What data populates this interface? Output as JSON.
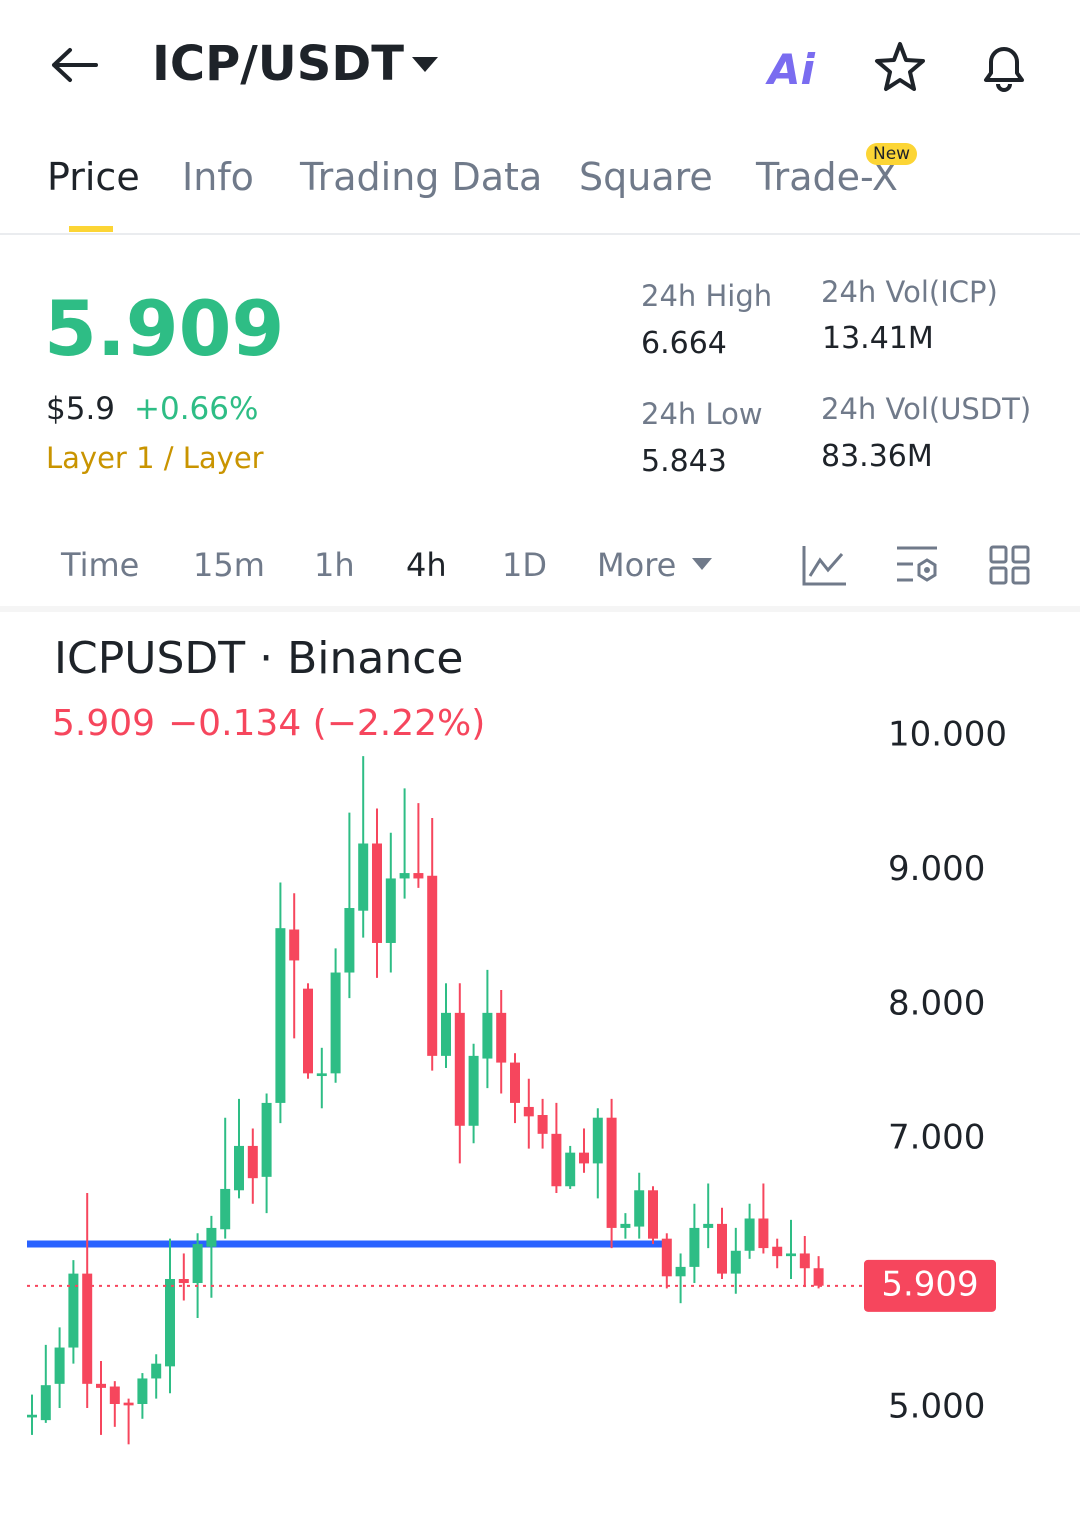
{
  "header": {
    "title": "ICP/USDT",
    "ai": "Ai"
  },
  "tabs": [
    "Price",
    "Info",
    "Trading Data",
    "Square",
    "Trade-X"
  ],
  "new_badge": "New",
  "price": {
    "last": "5.909",
    "usd": "$5.9",
    "change": "+0.66%",
    "tag": "Layer 1 / Layer"
  },
  "stats": [
    {
      "label": "24h High",
      "value": "6.664"
    },
    {
      "label": "24h Vol(ICP)",
      "value": "13.41M"
    },
    {
      "label": "24h Low",
      "value": "5.843"
    },
    {
      "label": "24h Vol(USDT)",
      "value": "83.36M"
    }
  ],
  "intervals": [
    "Time",
    "15m",
    "1h",
    "4h",
    "1D",
    "More"
  ],
  "chart": {
    "type": "candlestick",
    "title": "ICPUSDT · Binance",
    "last": "5.909",
    "change": "−0.134 (−2.22%)",
    "up_color": "#2ebd85",
    "down_color": "#f6465d",
    "ylim": [
      4.1,
      10.9
    ],
    "yticks": [
      {
        "value": 10,
        "label": "10.000"
      },
      {
        "value": 9,
        "label": "9.000"
      },
      {
        "value": 8,
        "label": "8.000"
      },
      {
        "value": 7,
        "label": "7.000"
      },
      {
        "value": 5,
        "label": "5.000"
      }
    ],
    "last_price": {
      "value": 5.909,
      "label": "5.909"
    },
    "horizontal_line": {
      "value": 6.22,
      "color": "#2962ff"
    },
    "open": [
      4.93,
      4.91,
      5.18,
      5.45,
      6.0,
      5.18,
      5.16,
      5.04,
      5.03,
      5.22,
      5.31,
      5.96,
      5.93,
      6.2,
      6.33,
      6.62,
      6.95,
      6.72,
      7.27,
      8.56,
      8.12,
      7.47,
      7.49,
      8.24,
      8.7,
      9.2,
      8.46,
      8.94,
      8.98,
      8.96,
      7.62,
      7.94,
      7.1,
      7.6,
      7.94,
      7.57,
      7.24,
      7.18,
      7.04,
      6.65,
      6.9,
      6.82,
      7.16,
      6.34,
      6.35,
      6.62,
      6.26,
      5.98,
      6.05,
      6.34,
      6.37,
      6.0,
      6.17,
      6.41,
      6.2,
      6.13,
      6.15,
      6.04
    ],
    "high": [
      5.1,
      5.47,
      5.6,
      6.1,
      6.6,
      5.35,
      5.2,
      5.07,
      5.26,
      5.4,
      6.26,
      6.15,
      6.3,
      6.43,
      7.16,
      7.3,
      7.08,
      7.34,
      8.91,
      8.83,
      8.16,
      7.68,
      8.42,
      9.43,
      9.85,
      9.46,
      9.28,
      9.61,
      9.5,
      9.39,
      8.16,
      8.16,
      7.71,
      8.26,
      8.11,
      7.64,
      7.45,
      7.3,
      7.27,
      6.95,
      7.08,
      7.23,
      7.3,
      6.45,
      6.75,
      6.65,
      6.3,
      6.15,
      6.52,
      6.67,
      6.49,
      6.34,
      6.52,
      6.67,
      6.26,
      6.4,
      6.28,
      6.13
    ],
    "low": [
      4.8,
      4.89,
      5.0,
      5.33,
      5.0,
      4.8,
      4.86,
      4.73,
      4.92,
      5.07,
      5.11,
      5.8,
      5.67,
      5.82,
      6.26,
      6.56,
      6.52,
      6.45,
      7.12,
      7.75,
      7.45,
      7.23,
      7.42,
      8.05,
      8.5,
      8.2,
      8.24,
      8.79,
      8.87,
      7.51,
      7.53,
      6.82,
      6.97,
      7.38,
      7.34,
      7.12,
      6.93,
      6.93,
      6.6,
      6.63,
      6.75,
      6.56,
      6.19,
      6.26,
      6.26,
      6.22,
      5.89,
      5.78,
      5.93,
      6.19,
      5.96,
      5.85,
      6.11,
      6.15,
      6.04,
      5.96,
      5.9,
      5.89
    ],
    "close": [
      4.95,
      5.17,
      5.45,
      6.0,
      5.18,
      5.15,
      5.03,
      5.02,
      5.22,
      5.33,
      5.96,
      5.93,
      6.22,
      6.34,
      6.63,
      6.95,
      6.71,
      7.27,
      8.57,
      8.33,
      7.49,
      7.49,
      8.24,
      8.72,
      9.2,
      8.46,
      8.94,
      8.98,
      8.94,
      7.62,
      7.94,
      7.1,
      7.62,
      7.94,
      7.57,
      7.27,
      7.17,
      7.04,
      6.65,
      6.9,
      6.82,
      7.16,
      6.34,
      6.37,
      6.62,
      6.26,
      5.98,
      6.05,
      6.34,
      6.37,
      6.0,
      6.17,
      6.41,
      6.19,
      6.13,
      6.15,
      6.04,
      5.91
    ]
  }
}
